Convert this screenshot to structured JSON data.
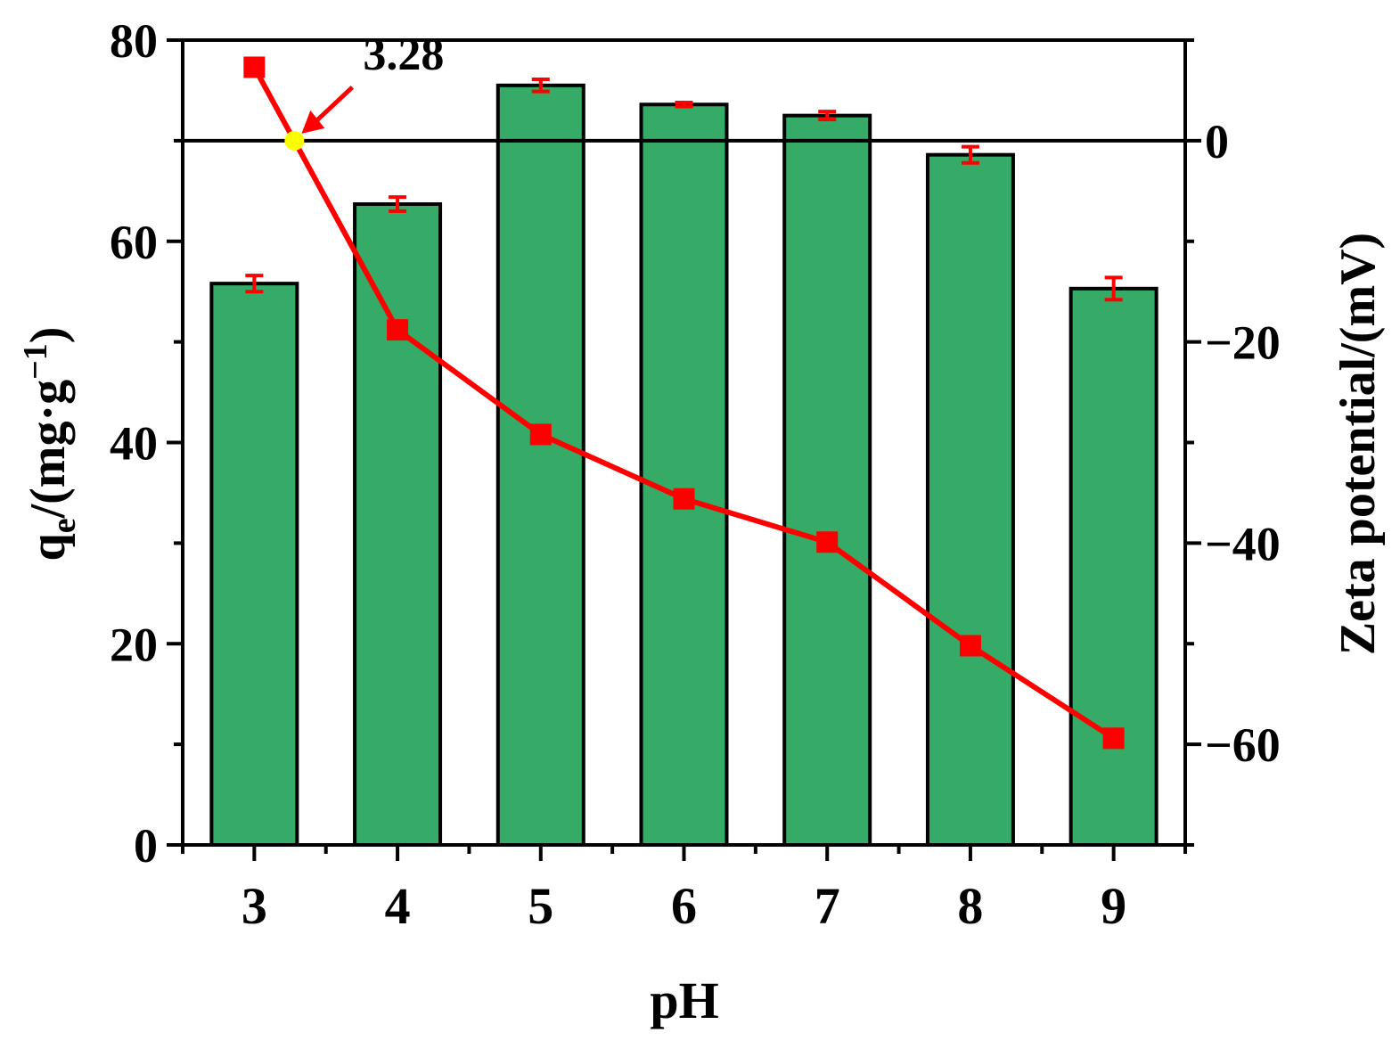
{
  "chart_data": {
    "type": "bar",
    "title": "",
    "xlabel": "pH",
    "ylabel": "q",
    "ylabel_sub": "e",
    "ylabel_rest": "/(mg·g",
    "ylabel_sup": "−1",
    "ylabel_close": ")",
    "y2label": "Zeta potential/(mV)",
    "categories": [
      "3",
      "4",
      "5",
      "6",
      "7",
      "8",
      "9"
    ],
    "x_values": [
      3,
      4,
      5,
      6,
      7,
      8,
      9
    ],
    "xlim": [
      2.5,
      9.5
    ],
    "ylim": [
      0,
      80
    ],
    "y_ticks": [
      "0",
      "20",
      "40",
      "60",
      "80"
    ],
    "y2lim": [
      -70,
      10
    ],
    "y2_ticks": [
      "0",
      "−20",
      "−40",
      "−60"
    ],
    "y2_tick_values": [
      0,
      -20,
      -40,
      -60
    ],
    "bars": {
      "values": [
        55.8,
        63.7,
        75.5,
        73.6,
        72.5,
        68.6,
        55.3
      ],
      "errors": [
        0.8,
        0.7,
        0.6,
        0.2,
        0.4,
        0.8,
        1.1
      ],
      "color": "#35ab67"
    },
    "zeta": {
      "values": [
        7.3,
        -18.8,
        -29.2,
        -35.6,
        -39.9,
        -50.2,
        -59.4
      ],
      "color": "#ff0000"
    },
    "zero_crossing": {
      "x": 3.28,
      "y": 0,
      "label": "3.28",
      "color": "#ffff00"
    },
    "grid": false,
    "legend": "none"
  }
}
